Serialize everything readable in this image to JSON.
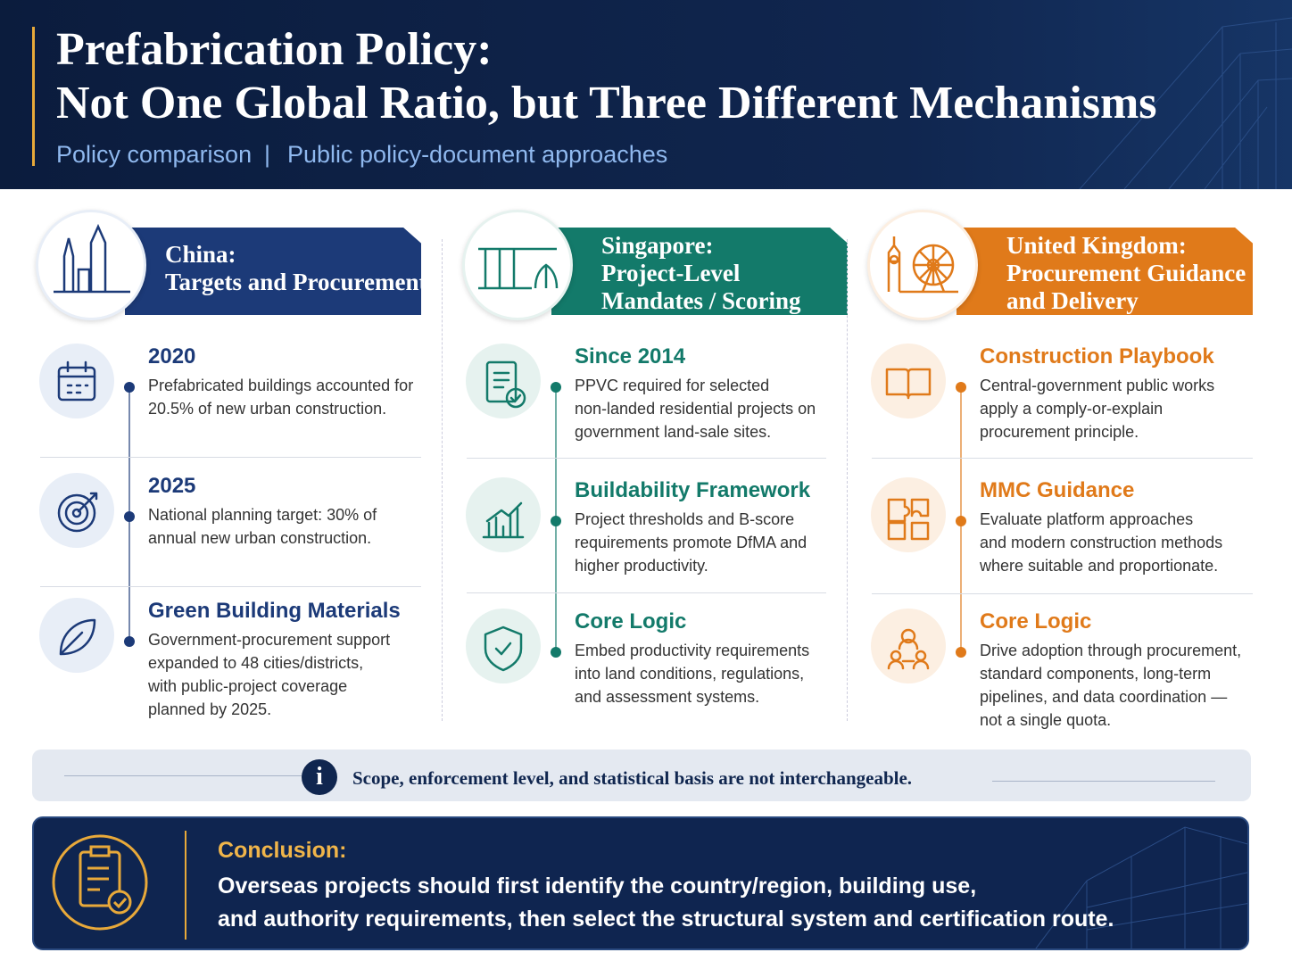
{
  "header": {
    "title_lines": [
      "Prefabrication Policy:",
      "Not One Global Ratio, but Three Different Mechanisms"
    ],
    "subtitle_left": "Policy comparison",
    "separator": "|",
    "subtitle_right": "Public policy-document approaches"
  },
  "columns": [
    {
      "title_lines": [
        "China:",
        "Targets and Procurement"
      ],
      "items": [
        {
          "heading": "2020",
          "text_lines": [
            "Prefabricated buildings accounted for",
            "20.5% of new urban construction."
          ]
        },
        {
          "heading": "2025",
          "text_lines": [
            "National planning target: 30% of",
            "annual new urban construction."
          ]
        },
        {
          "heading": "Green Building Materials",
          "text_lines": [
            "Government-procurement support",
            "expanded to 48 cities/districts,",
            "with public-project coverage",
            "planned by 2025."
          ]
        }
      ]
    },
    {
      "title_lines": [
        "Singapore:",
        "Project-Level",
        "Mandates / Scoring"
      ],
      "items": [
        {
          "heading": "Since 2014",
          "text_lines": [
            "PPVC required for selected",
            "non-landed residential projects on",
            "government land-sale sites."
          ]
        },
        {
          "heading": "Buildability Framework",
          "text_lines": [
            "Project thresholds and B-score",
            "requirements promote DfMA and",
            "higher productivity."
          ]
        },
        {
          "heading": "Core Logic",
          "text_lines": [
            "Embed productivity requirements",
            "into land conditions, regulations,",
            "and assessment systems."
          ]
        }
      ]
    },
    {
      "title_lines": [
        "United Kingdom:",
        "Procurement Guidance",
        "and Delivery"
      ],
      "items": [
        {
          "heading": "Construction Playbook",
          "text_lines": [
            "Central-government public works",
            "apply a comply-or-explain",
            "procurement principle."
          ]
        },
        {
          "heading": "MMC Guidance",
          "text_lines": [
            "Evaluate platform approaches",
            "and modern construction methods",
            "where suitable and proportionate."
          ]
        },
        {
          "heading": "Core Logic",
          "text_lines": [
            "Drive adoption through procurement,",
            "standard components, long-term",
            "pipelines, and data coordination —",
            "not a single quota."
          ]
        }
      ]
    }
  ],
  "note": {
    "icon": "i",
    "text": "Scope, enforcement level, and statistical basis are not interchangeable."
  },
  "conclusion": {
    "label": "Conclusion:",
    "lines": [
      "Overseas projects should first identify the country/region, building use,",
      "and authority requirements, then select the structural system and certification route."
    ]
  }
}
